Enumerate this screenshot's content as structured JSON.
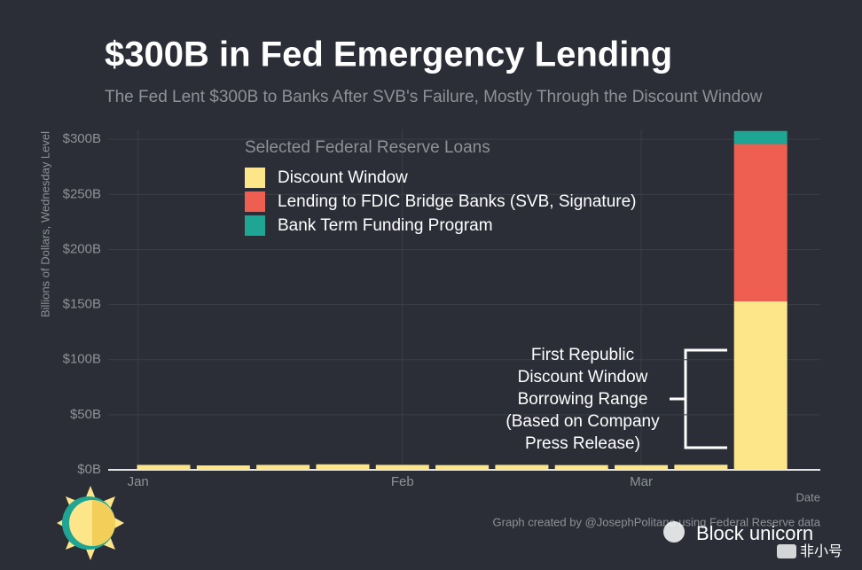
{
  "chart_data": {
    "type": "bar",
    "stacked": true,
    "title": "$300B in Fed Emergency Lending",
    "subtitle": "The Fed Lent $300B to Banks After SVB's Failure, Mostly Through the Discount Window",
    "y_label": "Billions of Dollars, Wednesday Level",
    "x_label": "Date",
    "legend_title": "Selected Federal Reserve Loans",
    "legend_position": "top-left",
    "grid": true,
    "x": [
      3,
      10,
      17,
      24,
      31,
      38,
      45,
      52,
      59,
      66,
      73
    ],
    "xlim": [
      -3.5,
      80
    ],
    "xticks": [
      {
        "value": 0,
        "label": "Jan"
      },
      {
        "value": 31,
        "label": "Feb"
      },
      {
        "value": 59,
        "label": "Mar"
      }
    ],
    "ylim": [
      0,
      309
    ],
    "yticks": [
      {
        "value": 0,
        "label": "$0B"
      },
      {
        "value": 50,
        "label": "$50B"
      },
      {
        "value": 100,
        "label": "$100B"
      },
      {
        "value": 150,
        "label": "$150B"
      },
      {
        "value": 200,
        "label": "$200B"
      },
      {
        "value": 250,
        "label": "$250B"
      },
      {
        "value": 300,
        "label": "$300B"
      }
    ],
    "series": [
      {
        "name": "Discount Window",
        "color": "#fde58a",
        "values": [
          4.5,
          4,
          4.5,
          5,
          4.5,
          4.3,
          4.5,
          4.3,
          4.3,
          4.6,
          152.9
        ]
      },
      {
        "name": "Lending to FDIC Bridge Banks (SVB, Signature)",
        "color": "#ee5f52",
        "values": [
          0,
          0,
          0,
          0,
          0,
          0,
          0,
          0,
          0,
          0,
          142.8
        ]
      },
      {
        "name": "Bank Term Funding Program",
        "color": "#1fa594",
        "values": [
          0,
          0,
          0,
          0,
          0,
          0,
          0,
          0,
          0,
          0,
          11.9
        ]
      }
    ],
    "annotation": [
      "First Republic",
      "Discount Window",
      "Borrowing Range",
      "(Based on Company",
      "Press Release)"
    ],
    "caption": "Graph created by @JosephPolitano using Federal Reserve data"
  },
  "watermark": {
    "brand": "Block unicorn",
    "site": "非小号"
  }
}
